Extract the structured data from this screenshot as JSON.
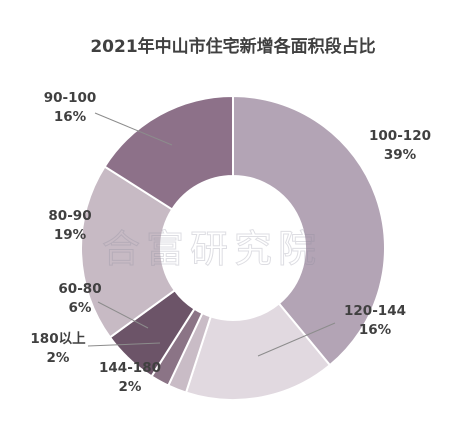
{
  "chart_data": {
    "type": "pie",
    "title": "2021年中山市住宅新增各面积段占比",
    "slices": [
      {
        "label": "100-120",
        "value": 39,
        "value_label": "39%",
        "color": "#b3a4b5"
      },
      {
        "label": "120-144",
        "value": 16,
        "value_label": "16%",
        "color": "#e1d9e0"
      },
      {
        "label": "144-180",
        "value": 2,
        "value_label": "2%",
        "color": "#c9bcc6"
      },
      {
        "label": "180以上",
        "value": 2,
        "value_label": "2%",
        "color": "#8b7486"
      },
      {
        "label": "60-80",
        "value": 6,
        "value_label": "6%",
        "color": "#6c5468"
      },
      {
        "label": "80-90",
        "value": 19,
        "value_label": "19%",
        "color": "#c7bac4"
      },
      {
        "label": "90-100",
        "value": 16,
        "value_label": "16%",
        "color": "#8d7189"
      }
    ],
    "legend": "none"
  },
  "watermark": "合富研究院"
}
